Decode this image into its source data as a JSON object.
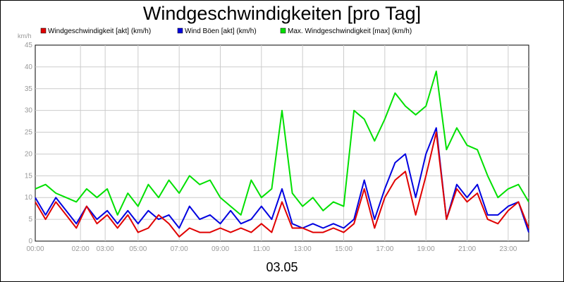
{
  "chart_data": {
    "type": "line",
    "title": "Windgeschwindigkeiten [pro Tag]",
    "ylabel": "km/h",
    "xlabel": "03.05",
    "ylim": [
      0,
      45
    ],
    "yticks": [
      0,
      5,
      10,
      15,
      20,
      25,
      30,
      35,
      40,
      45
    ],
    "xlim": [
      0,
      24
    ],
    "xticks": [
      {
        "x": 0,
        "label": "00:00"
      },
      {
        "x": 2.2,
        "label": "02:00"
      },
      {
        "x": 3.4,
        "label": "03:00"
      },
      {
        "x": 5.0,
        "label": "05:00"
      },
      {
        "x": 7.0,
        "label": "07:00"
      },
      {
        "x": 9.0,
        "label": "09:00"
      },
      {
        "x": 11.0,
        "label": "11:00"
      },
      {
        "x": 13.0,
        "label": "13:00"
      },
      {
        "x": 15.0,
        "label": "15:00"
      },
      {
        "x": 17.0,
        "label": "17:00"
      },
      {
        "x": 19.0,
        "label": "19:00"
      },
      {
        "x": 21.0,
        "label": "21:00"
      },
      {
        "x": 23.0,
        "label": "23:00"
      }
    ],
    "grid": true,
    "legend_position": "top",
    "series": [
      {
        "name": "Windgeschwindigkeit [akt] (km/h)",
        "color": "#e00000",
        "x": [
          0,
          0.5,
          1,
          1.5,
          2,
          2.5,
          3,
          3.5,
          4,
          4.5,
          5,
          5.5,
          6,
          6.5,
          7,
          7.5,
          8,
          8.5,
          9,
          9.5,
          10,
          10.5,
          11,
          11.5,
          12,
          12.5,
          13,
          13.5,
          14,
          14.5,
          15,
          15.5,
          16,
          16.5,
          17,
          17.5,
          18,
          18.5,
          19,
          19.5,
          20,
          20.5,
          21,
          21.5,
          22,
          22.5,
          23,
          23.5,
          24
        ],
        "y": [
          9,
          5,
          9,
          6,
          3,
          8,
          4,
          6,
          3,
          6,
          2,
          3,
          6,
          4,
          1,
          3,
          2,
          2,
          3,
          2,
          3,
          2,
          4,
          2,
          9,
          3,
          3,
          2,
          2,
          3,
          2,
          4,
          12,
          3,
          10,
          14,
          16,
          6,
          15,
          25,
          5,
          12,
          9,
          11,
          5,
          4,
          7,
          9,
          3
        ]
      },
      {
        "name": "Wind Böen [akt] (km/h)",
        "color": "#0000e0",
        "x": [
          0,
          0.5,
          1,
          1.5,
          2,
          2.5,
          3,
          3.5,
          4,
          4.5,
          5,
          5.5,
          6,
          6.5,
          7,
          7.5,
          8,
          8.5,
          9,
          9.5,
          10,
          10.5,
          11,
          11.5,
          12,
          12.5,
          13,
          13.5,
          14,
          14.5,
          15,
          15.5,
          16,
          16.5,
          17,
          17.5,
          18,
          18.5,
          19,
          19.5,
          20,
          20.5,
          21,
          21.5,
          22,
          22.5,
          23,
          23.5,
          24
        ],
        "y": [
          10,
          6,
          10,
          7,
          4,
          8,
          5,
          7,
          4,
          7,
          4,
          7,
          5,
          6,
          3,
          8,
          5,
          6,
          4,
          7,
          4,
          5,
          8,
          5,
          12,
          4,
          3,
          4,
          3,
          4,
          3,
          5,
          14,
          5,
          12,
          18,
          20,
          10,
          20,
          26,
          5,
          13,
          10,
          13,
          6,
          6,
          8,
          9,
          2
        ]
      },
      {
        "name": "Max. Windgeschwindigkeit [max] (km/h)",
        "color": "#00e000",
        "x": [
          0,
          0.5,
          1,
          1.5,
          2,
          2.5,
          3,
          3.5,
          4,
          4.5,
          5,
          5.5,
          6,
          6.5,
          7,
          7.5,
          8,
          8.5,
          9,
          9.5,
          10,
          10.5,
          11,
          11.5,
          12,
          12.5,
          13,
          13.5,
          14,
          14.5,
          15,
          15.5,
          16,
          16.5,
          17,
          17.5,
          18,
          18.5,
          19,
          19.5,
          20,
          20.5,
          21,
          21.5,
          22,
          22.5,
          23,
          23.5,
          24
        ],
        "y": [
          12,
          13,
          11,
          10,
          9,
          12,
          10,
          12,
          6,
          11,
          8,
          13,
          10,
          14,
          11,
          15,
          13,
          14,
          10,
          8,
          6,
          14,
          10,
          12,
          30,
          11,
          8,
          10,
          7,
          9,
          8,
          30,
          28,
          23,
          28,
          34,
          31,
          29,
          31,
          39,
          21,
          26,
          22,
          21,
          15,
          10,
          12,
          13,
          9
        ]
      }
    ]
  }
}
